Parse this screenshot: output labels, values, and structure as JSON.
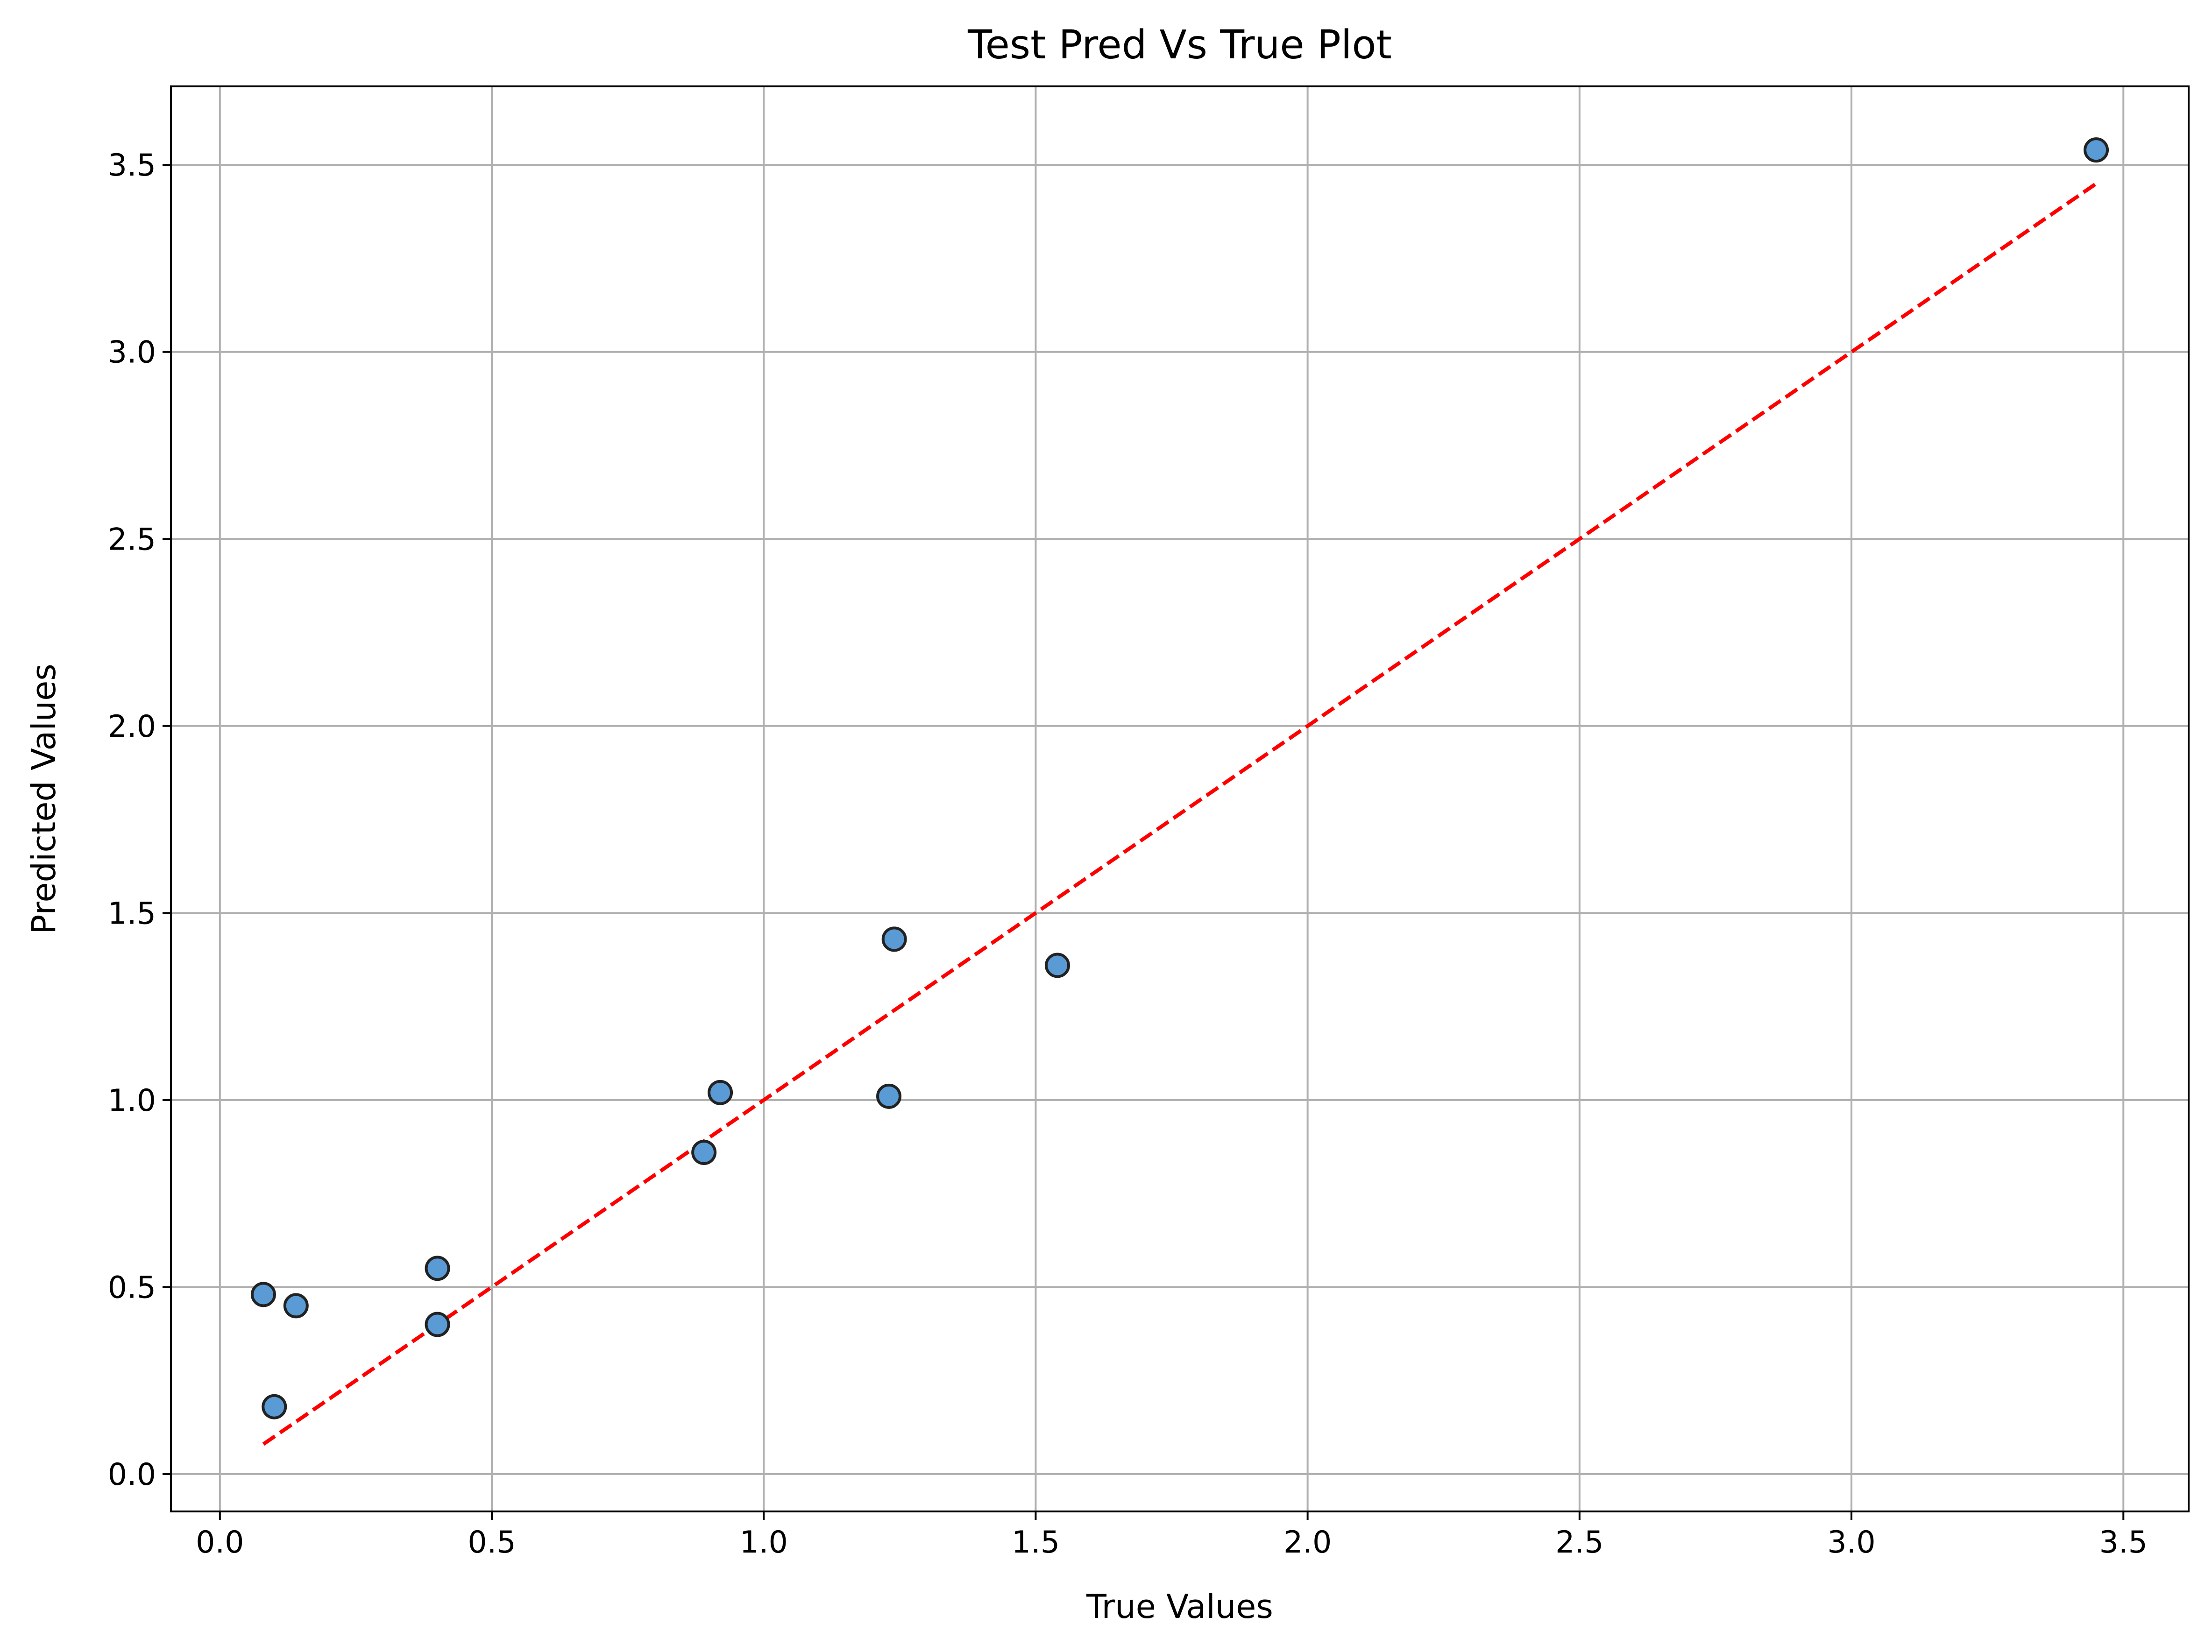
{
  "chart_data": {
    "type": "scatter",
    "title": "Test Pred Vs True Plot",
    "xlabel": "True Values",
    "ylabel": "Predicted Values",
    "xlim": [
      -0.09,
      3.62
    ],
    "ylim": [
      -0.1,
      3.71
    ],
    "x_ticks": [
      0.0,
      0.5,
      1.0,
      1.5,
      2.0,
      2.5,
      3.0,
      3.5
    ],
    "x_tick_labels": [
      "0.0",
      "0.5",
      "1.0",
      "1.5",
      "2.0",
      "2.5",
      "3.0",
      "3.5"
    ],
    "y_ticks": [
      0.0,
      0.5,
      1.0,
      1.5,
      2.0,
      2.5,
      3.0,
      3.5
    ],
    "y_tick_labels": [
      "0.0",
      "0.5",
      "1.0",
      "1.5",
      "2.0",
      "2.5",
      "3.0",
      "3.5"
    ],
    "grid": true,
    "legend": false,
    "series": [
      {
        "kind": "scatter",
        "color": "#5b9bd5",
        "edgecolor": "#222222",
        "points": [
          {
            "x": 0.08,
            "y": 0.48
          },
          {
            "x": 0.1,
            "y": 0.18
          },
          {
            "x": 0.14,
            "y": 0.45
          },
          {
            "x": 0.4,
            "y": 0.55
          },
          {
            "x": 0.4,
            "y": 0.4
          },
          {
            "x": 0.89,
            "y": 0.86
          },
          {
            "x": 0.92,
            "y": 1.02
          },
          {
            "x": 1.23,
            "y": 1.01
          },
          {
            "x": 1.24,
            "y": 1.43
          },
          {
            "x": 1.54,
            "y": 1.36
          },
          {
            "x": 3.45,
            "y": 3.54
          }
        ]
      },
      {
        "kind": "line",
        "style": "dashed",
        "color": "#ff0000",
        "points": [
          {
            "x": 0.08,
            "y": 0.08
          },
          {
            "x": 3.45,
            "y": 3.45
          }
        ]
      }
    ],
    "colors": {
      "grid": "#b0b0b0",
      "axes": "#000000",
      "marker_fill": "#5b9bd5",
      "marker_edge": "#222222",
      "reference_line": "#ff0000"
    }
  }
}
